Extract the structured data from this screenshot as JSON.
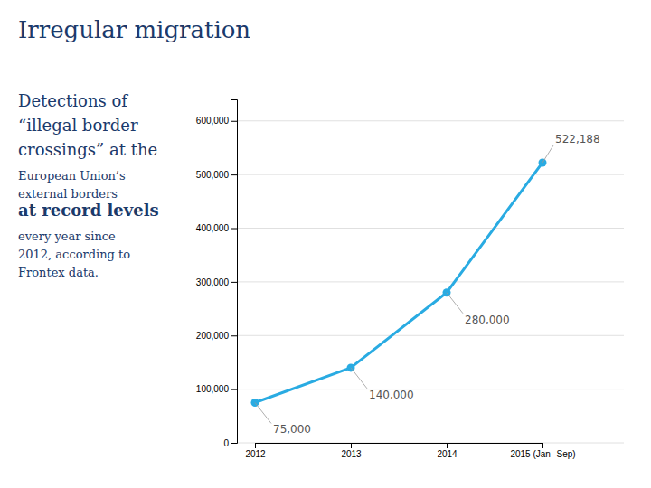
{
  "chart_data": {
    "type": "line",
    "title": "Irregular migration",
    "annotations": [
      "Detections of",
      "“illegal border",
      "crossings” at the",
      "European Union’s",
      "external borders",
      "at record levels",
      "every year since",
      "2012, according to",
      "Frontex data."
    ],
    "categories": [
      "2012",
      "2013",
      "2014",
      "2015 (Jan--Sep)"
    ],
    "values": [
      75000,
      140000,
      280000,
      522188
    ],
    "data_labels": true,
    "value_labels": [
      "75,000",
      "140,000",
      "280,000",
      "522,188"
    ],
    "color": "#29ABE2",
    "ylim": [
      0,
      640000
    ],
    "yticks": [
      0,
      {
        "value": 100000,
        "label": "100,000"
      },
      {
        "value": 200000,
        "label": "200,000"
      },
      {
        "value": 300000,
        "label": "300,000"
      },
      {
        "value": 400000,
        "label": "400,000"
      },
      {
        "value": 500000,
        "label": "500,000"
      },
      {
        "value": 600000,
        "label": "600,000"
      }
    ],
    "grid": true
  }
}
